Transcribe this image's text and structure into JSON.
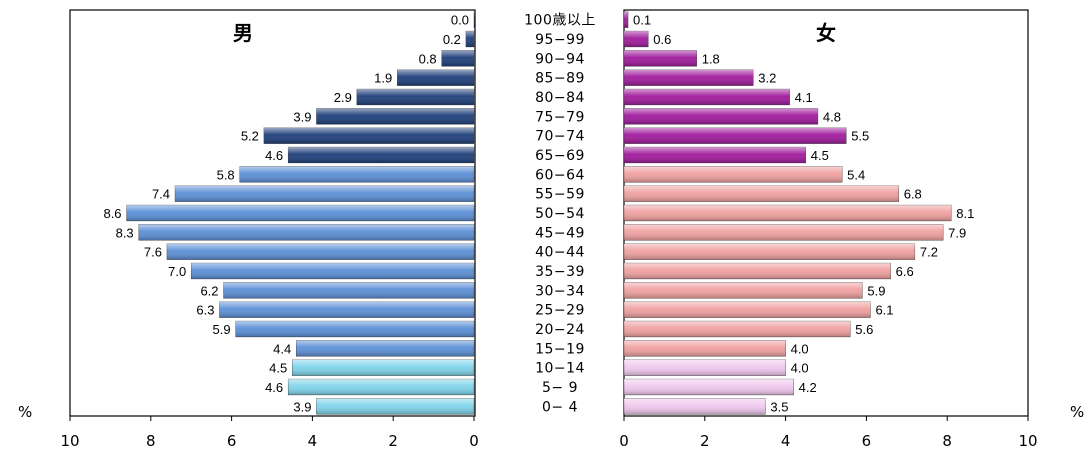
{
  "chart_data": {
    "type": "bar",
    "orientation": "horizontal",
    "categories": [
      "100歳以上",
      "95−99",
      "90−94",
      "85−89",
      "80−84",
      "75−79",
      "70−74",
      "65−69",
      "60−64",
      "55−59",
      "50−54",
      "45−49",
      "40−44",
      "35−39",
      "30−34",
      "25−29",
      "20−24",
      "15−19",
      "10−14",
      "5− 9",
      "0− 4"
    ],
    "series": [
      {
        "name": "男",
        "values": [
          0.0,
          0.2,
          0.8,
          1.9,
          2.9,
          3.9,
          5.2,
          4.6,
          5.8,
          7.4,
          8.6,
          8.3,
          7.6,
          7.0,
          6.2,
          6.3,
          5.9,
          4.4,
          4.5,
          4.6,
          3.9
        ],
        "labels": [
          "0.0",
          "0.2",
          "0.8",
          "1.9",
          "2.9",
          "3.9",
          "5.2",
          "4.6",
          "5.8",
          "7.4",
          "8.6",
          "8.3",
          "7.6",
          "7.0",
          "6.2",
          "6.3",
          "5.9",
          "4.4",
          "4.5",
          "4.6",
          "3.9"
        ],
        "colors": {
          "old": "#1e3f7a",
          "working": "#5b8fd6",
          "young": "#7fd3ea"
        }
      },
      {
        "name": "女",
        "values": [
          0.1,
          0.6,
          1.8,
          3.2,
          4.1,
          4.8,
          5.5,
          4.5,
          5.4,
          6.8,
          8.1,
          7.9,
          7.2,
          6.6,
          5.9,
          6.1,
          5.6,
          4.0,
          4.0,
          4.2,
          3.5
        ],
        "labels": [
          "0.1",
          "0.6",
          "1.8",
          "3.2",
          "4.1",
          "4.8",
          "5.5",
          "4.5",
          "5.4",
          "6.8",
          "8.1",
          "7.9",
          "7.2",
          "6.6",
          "5.9",
          "6.1",
          "5.6",
          "4.0",
          "4.0",
          "4.2",
          "3.5"
        ],
        "colors": {
          "old": "#a01a9c",
          "working": "#f0a0a0",
          "young": "#f0c8ee"
        }
      }
    ],
    "xlim": [
      0,
      10
    ],
    "xticks": [
      "10",
      "8",
      "6",
      "4",
      "2",
      "0"
    ],
    "xticks_right": [
      "0",
      "2",
      "4",
      "6",
      "8",
      "10"
    ],
    "unit_label": "%",
    "grid": false
  }
}
